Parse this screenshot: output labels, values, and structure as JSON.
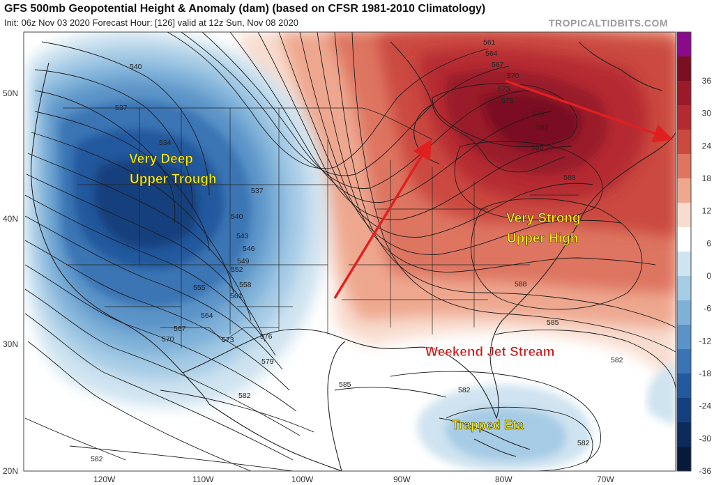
{
  "header": {
    "title": "GFS 500mb Geopotential Height & Anomaly (dam) (based on CFSR 1981-2010 Climatology)",
    "subtitle": "Init: 06z Nov 03 2020   Forecast Hour: [126]   valid at 12z Sun, Nov 08 2020",
    "brand": "TROPICALTIDBITS.COM"
  },
  "colorbar": {
    "labels": [
      "36",
      "30",
      "24",
      "18",
      "12",
      "6",
      "0",
      "-6",
      "-12",
      "-18",
      "-24",
      "-30",
      "-36"
    ],
    "colors": [
      "#8b0a8b",
      "#7a0f22",
      "#9a1a2a",
      "#b52a30",
      "#cb4a40",
      "#dd7560",
      "#eea78f",
      "#f8dccf",
      "#ffffff",
      "#cfe3f0",
      "#a6cbe5",
      "#7fb1d8",
      "#5a93c7",
      "#3a74b4",
      "#23599d",
      "#163f7d",
      "#0c2a5c",
      "#081a3c"
    ]
  },
  "axes": {
    "lat_labels": [
      "50N",
      "40N",
      "30N",
      "20N"
    ],
    "lon_labels": [
      "120W",
      "110W",
      "100W",
      "90W",
      "80W",
      "70W"
    ]
  },
  "contour_labels": [
    "540",
    "537",
    "534",
    "537",
    "540",
    "543",
    "546",
    "549",
    "552",
    "555",
    "558",
    "561",
    "564",
    "567",
    "570",
    "573",
    "576",
    "579",
    "585",
    "582",
    "582",
    "582",
    "561",
    "564",
    "567",
    "570",
    "573",
    "576",
    "579",
    "582",
    "585",
    "588",
    "588",
    "585",
    "582",
    "582"
  ],
  "annotations": {
    "trough_line1": "Very Deep",
    "trough_line2": "Upper Trough",
    "high_line1": "Very Strong",
    "high_line2": "Upper High",
    "jet": "Weekend Jet Stream",
    "eta": "Trapped Eta"
  },
  "colors": {
    "annotation_yellow": "#ffee00",
    "annotation_red": "#d01818",
    "arrow_red": "#e02020"
  }
}
